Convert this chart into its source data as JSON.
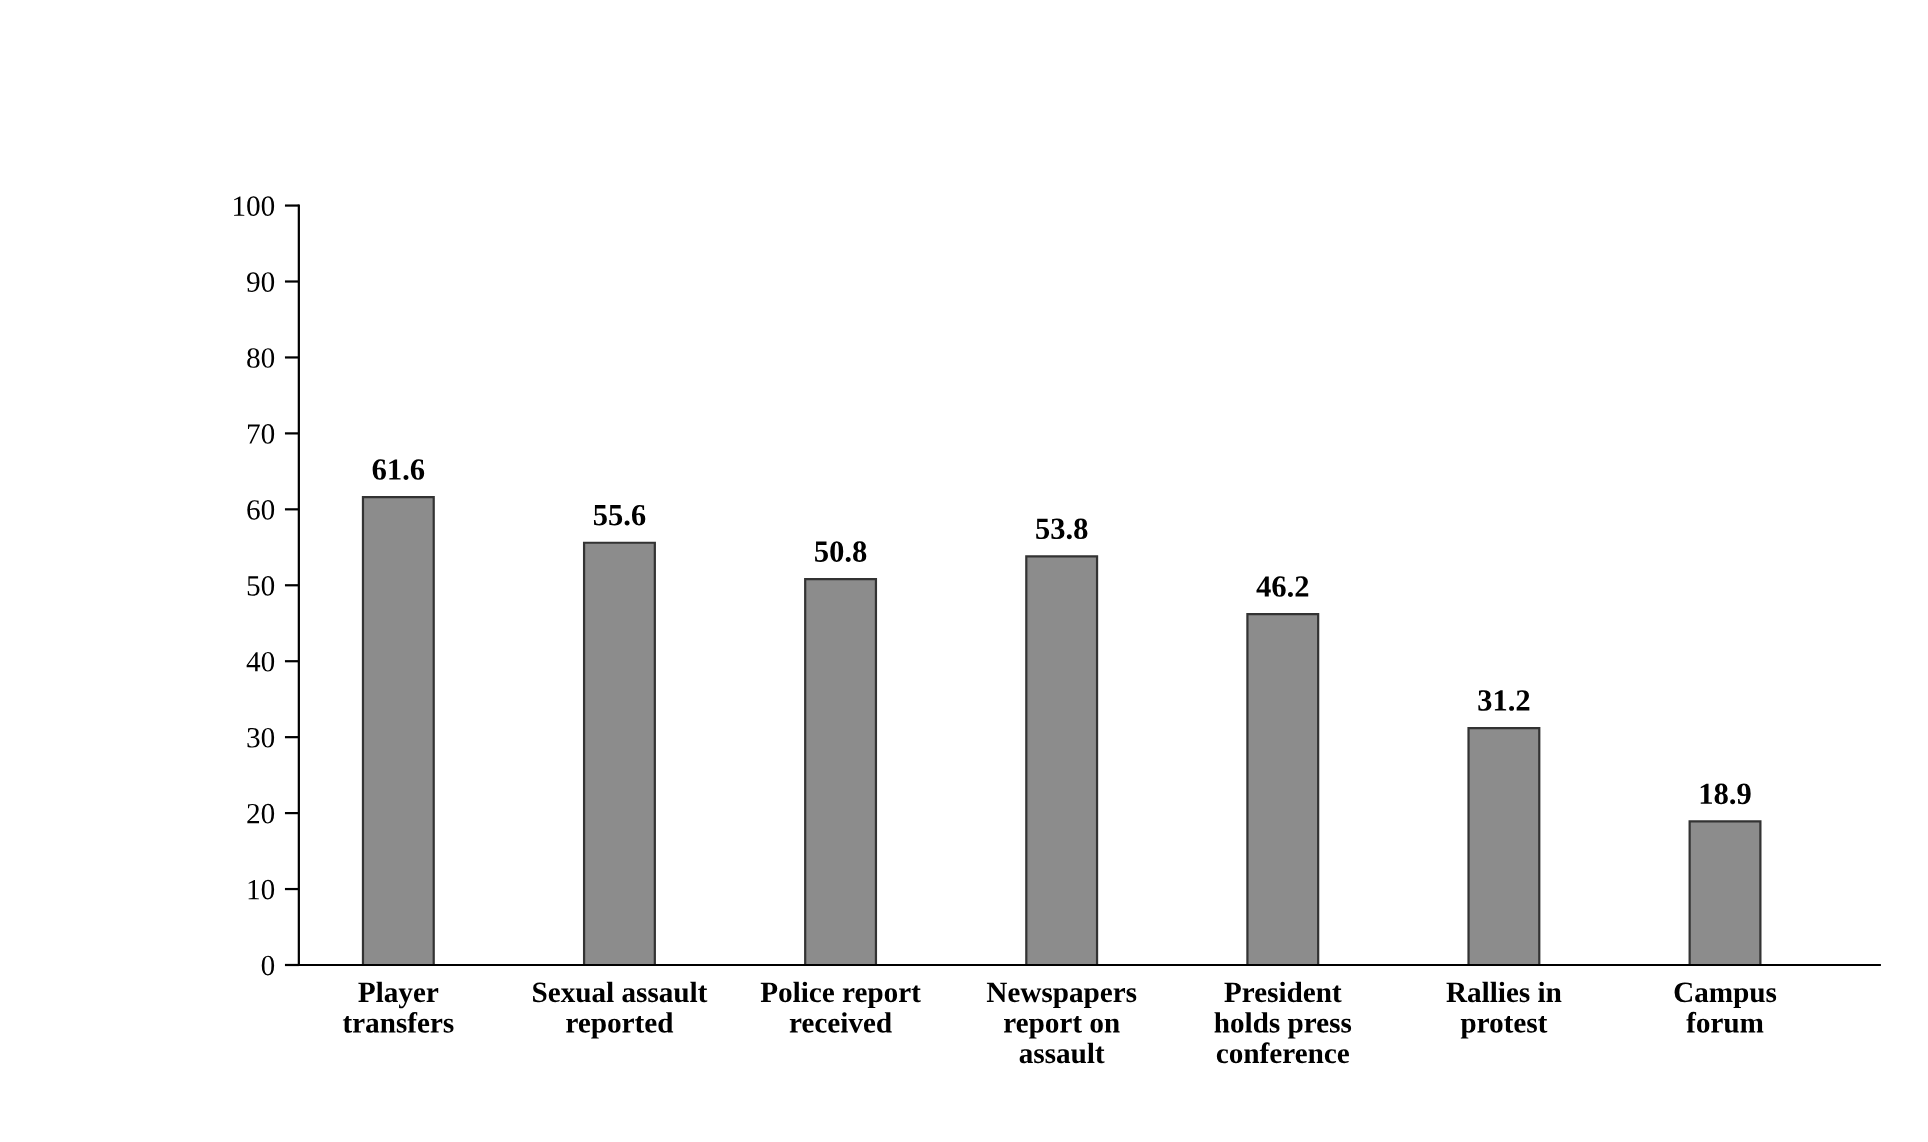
{
  "chart_data": {
    "type": "bar",
    "categories": [
      "Player\ntransfers",
      "Sexual assault\nreported",
      "Police report\nreceived",
      "Newspapers\nreport on\nassault",
      "President\nholds press\nconference",
      "Rallies in\nprotest",
      "Campus\nforum"
    ],
    "values": [
      61.6,
      55.6,
      50.8,
      53.8,
      46.2,
      31.2,
      18.9
    ],
    "color": "#8c8c8c",
    "ylim": [
      0,
      100
    ],
    "yticks": [
      0,
      10,
      20,
      30,
      40,
      50,
      60,
      70,
      80,
      90,
      100
    ],
    "data_labels": true,
    "grid": false,
    "legend": false
  }
}
